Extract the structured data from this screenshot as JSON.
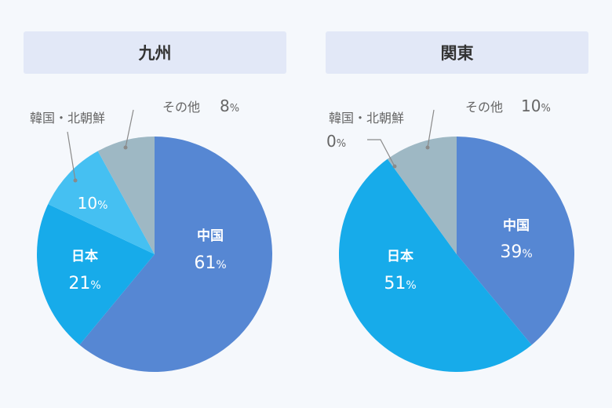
{
  "chart_data": [
    {
      "type": "pie",
      "title": "九州",
      "slices": [
        {
          "name": "中国",
          "value": 61,
          "color": "#5687d3"
        },
        {
          "name": "日本",
          "value": 21,
          "color": "#17abea"
        },
        {
          "name": "韓国・北朝鮮",
          "value": 10,
          "color": "#45c0f2"
        },
        {
          "name": "その他",
          "value": 8,
          "color": "#9eb8c4"
        }
      ],
      "value_suffix": "%"
    },
    {
      "type": "pie",
      "title": "関東",
      "slices": [
        {
          "name": "中国",
          "value": 39,
          "color": "#5687d3"
        },
        {
          "name": "日本",
          "value": 51,
          "color": "#17abea"
        },
        {
          "name": "韓国・北朝鮮",
          "value": 0,
          "color": "#45c0f2"
        },
        {
          "name": "その他",
          "value": 10,
          "color": "#9eb8c4"
        }
      ],
      "value_suffix": "%"
    }
  ]
}
